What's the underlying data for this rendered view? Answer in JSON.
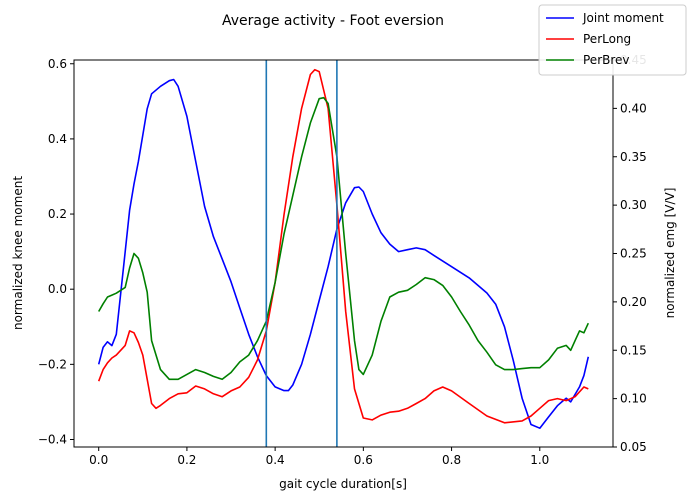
{
  "chart_data": {
    "type": "line",
    "title": "Average activity - Foot eversion",
    "xlabel": "gait cycle duration[s]",
    "ylabel": "normalized knee moment",
    "ylabel2": "normalized emg [V/V]",
    "xlim": [
      -0.056,
      1.166
    ],
    "ylim": [
      -0.42,
      0.61
    ],
    "y2lim": [
      0.05,
      0.45
    ],
    "xticks": [
      0.0,
      0.2,
      0.4,
      0.6,
      0.8,
      1.0
    ],
    "xtick_labels": [
      "0.0",
      "0.2",
      "0.4",
      "0.6",
      "0.8",
      "1.0"
    ],
    "yticks": [
      -0.4,
      -0.2,
      0.0,
      0.2,
      0.4,
      0.6
    ],
    "ytick_labels": [
      "−0.4",
      "−0.2",
      "0.0",
      "0.2",
      "0.4",
      "0.6"
    ],
    "y2ticks": [
      0.05,
      0.1,
      0.15,
      0.2,
      0.25,
      0.3,
      0.35,
      0.4,
      0.45
    ],
    "y2tick_labels": [
      "0.05",
      "0.10",
      "0.15",
      "0.20",
      "0.25",
      "0.30",
      "0.35",
      "0.40",
      "0.45"
    ],
    "vlines": [
      0.38,
      0.54
    ],
    "grid": false,
    "legend_position": "top-right",
    "series": [
      {
        "name": "Joint moment",
        "axis": "left",
        "color": "#0000ff",
        "x": [
          0.0,
          0.01,
          0.02,
          0.03,
          0.04,
          0.06,
          0.07,
          0.08,
          0.09,
          0.1,
          0.11,
          0.12,
          0.14,
          0.16,
          0.17,
          0.18,
          0.2,
          0.22,
          0.24,
          0.26,
          0.28,
          0.3,
          0.32,
          0.34,
          0.36,
          0.38,
          0.4,
          0.42,
          0.43,
          0.44,
          0.46,
          0.48,
          0.5,
          0.52,
          0.54,
          0.56,
          0.58,
          0.59,
          0.6,
          0.62,
          0.64,
          0.66,
          0.68,
          0.7,
          0.72,
          0.74,
          0.76,
          0.8,
          0.84,
          0.88,
          0.9,
          0.92,
          0.94,
          0.96,
          0.98,
          1.0,
          1.02,
          1.04,
          1.05,
          1.06,
          1.07,
          1.08,
          1.09,
          1.1,
          1.11
        ],
        "values": [
          -0.2,
          -0.155,
          -0.14,
          -0.15,
          -0.12,
          0.1,
          0.21,
          0.28,
          0.34,
          0.41,
          0.48,
          0.52,
          0.54,
          0.555,
          0.558,
          0.54,
          0.46,
          0.34,
          0.22,
          0.14,
          0.08,
          0.02,
          -0.05,
          -0.12,
          -0.18,
          -0.23,
          -0.26,
          -0.27,
          -0.27,
          -0.255,
          -0.2,
          -0.12,
          -0.03,
          0.06,
          0.16,
          0.23,
          0.27,
          0.272,
          0.26,
          0.2,
          0.15,
          0.12,
          0.1,
          0.105,
          0.11,
          0.105,
          0.09,
          0.06,
          0.03,
          -0.01,
          -0.04,
          -0.1,
          -0.19,
          -0.29,
          -0.36,
          -0.37,
          -0.34,
          -0.31,
          -0.3,
          -0.29,
          -0.3,
          -0.28,
          -0.26,
          -0.23,
          -0.18
        ]
      },
      {
        "name": "PerLong",
        "axis": "right",
        "color": "#ff0000",
        "x": [
          0.0,
          0.01,
          0.02,
          0.03,
          0.04,
          0.06,
          0.07,
          0.08,
          0.09,
          0.1,
          0.11,
          0.12,
          0.13,
          0.14,
          0.16,
          0.18,
          0.2,
          0.22,
          0.24,
          0.26,
          0.28,
          0.3,
          0.32,
          0.34,
          0.36,
          0.38,
          0.4,
          0.42,
          0.44,
          0.46,
          0.48,
          0.49,
          0.5,
          0.52,
          0.54,
          0.56,
          0.58,
          0.6,
          0.62,
          0.64,
          0.66,
          0.68,
          0.7,
          0.72,
          0.74,
          0.76,
          0.78,
          0.8,
          0.84,
          0.88,
          0.92,
          0.96,
          0.98,
          1.0,
          1.02,
          1.04,
          1.06,
          1.08,
          1.1,
          1.11
        ],
        "values": [
          0.118,
          0.13,
          0.137,
          0.142,
          0.145,
          0.155,
          0.17,
          0.168,
          0.158,
          0.145,
          0.12,
          0.095,
          0.09,
          0.093,
          0.1,
          0.105,
          0.106,
          0.113,
          0.11,
          0.105,
          0.102,
          0.108,
          0.112,
          0.122,
          0.14,
          0.17,
          0.22,
          0.29,
          0.35,
          0.4,
          0.435,
          0.44,
          0.438,
          0.4,
          0.3,
          0.19,
          0.11,
          0.08,
          0.078,
          0.083,
          0.086,
          0.087,
          0.09,
          0.095,
          0.1,
          0.108,
          0.112,
          0.108,
          0.095,
          0.082,
          0.075,
          0.077,
          0.082,
          0.09,
          0.098,
          0.1,
          0.098,
          0.102,
          0.112,
          0.11
        ]
      },
      {
        "name": "PerBrev",
        "axis": "right",
        "color": "#008000",
        "x": [
          0.0,
          0.01,
          0.02,
          0.03,
          0.04,
          0.06,
          0.07,
          0.08,
          0.09,
          0.1,
          0.11,
          0.12,
          0.14,
          0.16,
          0.18,
          0.2,
          0.22,
          0.24,
          0.26,
          0.28,
          0.3,
          0.32,
          0.34,
          0.36,
          0.38,
          0.4,
          0.42,
          0.44,
          0.46,
          0.48,
          0.5,
          0.51,
          0.52,
          0.54,
          0.56,
          0.58,
          0.59,
          0.6,
          0.62,
          0.64,
          0.66,
          0.68,
          0.7,
          0.72,
          0.74,
          0.76,
          0.78,
          0.8,
          0.82,
          0.84,
          0.86,
          0.88,
          0.9,
          0.92,
          0.94,
          0.96,
          0.98,
          1.0,
          1.02,
          1.04,
          1.06,
          1.07,
          1.08,
          1.09,
          1.1,
          1.11
        ],
        "values": [
          0.19,
          0.198,
          0.205,
          0.207,
          0.209,
          0.215,
          0.235,
          0.25,
          0.245,
          0.23,
          0.21,
          0.16,
          0.13,
          0.12,
          0.12,
          0.125,
          0.13,
          0.127,
          0.123,
          0.12,
          0.127,
          0.138,
          0.145,
          0.16,
          0.18,
          0.22,
          0.27,
          0.31,
          0.35,
          0.385,
          0.41,
          0.411,
          0.405,
          0.35,
          0.25,
          0.16,
          0.13,
          0.125,
          0.145,
          0.18,
          0.205,
          0.21,
          0.212,
          0.218,
          0.225,
          0.223,
          0.217,
          0.205,
          0.19,
          0.176,
          0.16,
          0.148,
          0.135,
          0.13,
          0.13,
          0.131,
          0.132,
          0.132,
          0.14,
          0.152,
          0.155,
          0.15,
          0.16,
          0.17,
          0.168,
          0.178
        ]
      }
    ]
  }
}
